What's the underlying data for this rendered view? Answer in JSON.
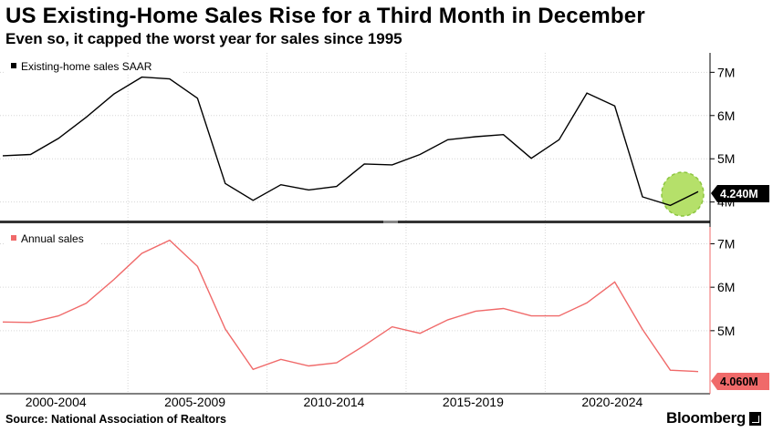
{
  "header": {
    "title": "US Existing-Home Sales Rise for a Third Month in December",
    "subtitle": "Even so, it capped the worst year for sales since 1995"
  },
  "footer": {
    "source": "Source: National Association of Realtors",
    "brand": "Bloomberg"
  },
  "colors": {
    "top_line": "#000000",
    "bottom_line": "#f06a6a",
    "highlight_fill": "#b5e06a",
    "highlight_stroke": "#8cc63f",
    "divider": "#333333"
  },
  "chart_data": [
    {
      "type": "line",
      "legend": "Existing-home sales SAAR",
      "series": [
        {
          "name": "Existing-home sales SAAR",
          "values": [
            5.07,
            5.1,
            5.47,
            5.96,
            6.5,
            6.89,
            6.85,
            6.4,
            4.43,
            4.04,
            4.4,
            4.28,
            4.36,
            4.88,
            4.86,
            5.1,
            5.44,
            5.51,
            5.56,
            5.01,
            5.44,
            6.52,
            6.22,
            4.12,
            3.92,
            4.24
          ]
        }
      ],
      "last_value_label": "4.240M",
      "highlight": "last segment circled",
      "ylim": [
        3.55,
        7.45
      ],
      "yticks": [
        4,
        5,
        6,
        7
      ],
      "ytick_labels": [
        "4M",
        "5M",
        "6M",
        "7M"
      ]
    },
    {
      "type": "line",
      "legend": "Annual sales",
      "series": [
        {
          "name": "Annual sales",
          "values": [
            5.2,
            5.19,
            5.34,
            5.63,
            6.18,
            6.78,
            7.08,
            6.48,
            5.04,
            4.11,
            4.34,
            4.19,
            4.26,
            4.66,
            5.09,
            4.94,
            5.25,
            5.45,
            5.51,
            5.34,
            5.34,
            5.64,
            6.12,
            5.03,
            4.09,
            4.06
          ]
        }
      ],
      "last_value_label": "4.060M",
      "ylim": [
        3.55,
        7.45
      ],
      "yticks": [
        5,
        6,
        7
      ],
      "ytick_labels": [
        "5M",
        "6M",
        "7M"
      ]
    }
  ],
  "x_axis": {
    "labels": [
      "2000-2004",
      "2005-2009",
      "2010-2014",
      "2015-2019",
      "2020-2024"
    ]
  }
}
